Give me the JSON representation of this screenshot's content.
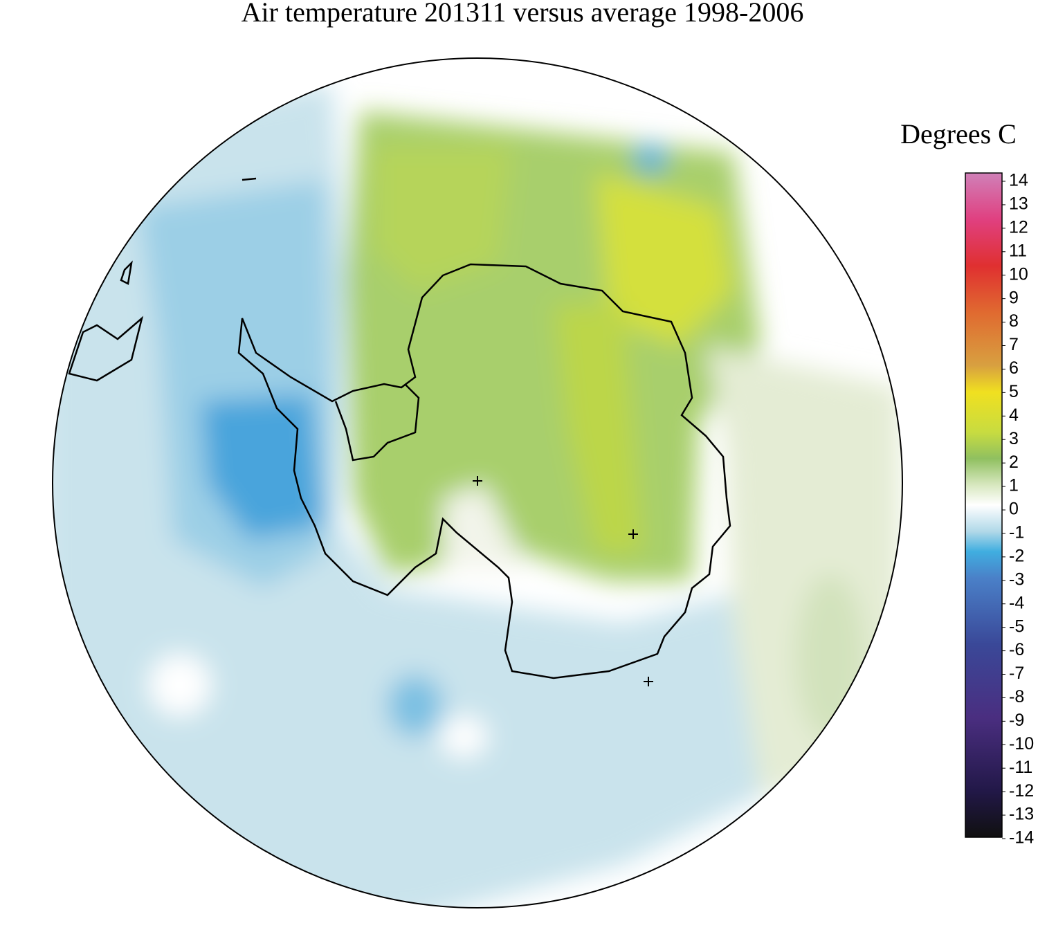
{
  "title": "Air temperature 201311 versus average 1998-2006",
  "colorbar": {
    "title": "Degrees C",
    "range": [
      -14,
      14
    ],
    "ticks": [
      14,
      13,
      12,
      11,
      10,
      9,
      8,
      7,
      6,
      5,
      4,
      3,
      2,
      1,
      0,
      -1,
      -2,
      -3,
      -4,
      -5,
      -6,
      -7,
      -8,
      -9,
      -10,
      -11,
      -12,
      -13,
      -14
    ]
  }
}
